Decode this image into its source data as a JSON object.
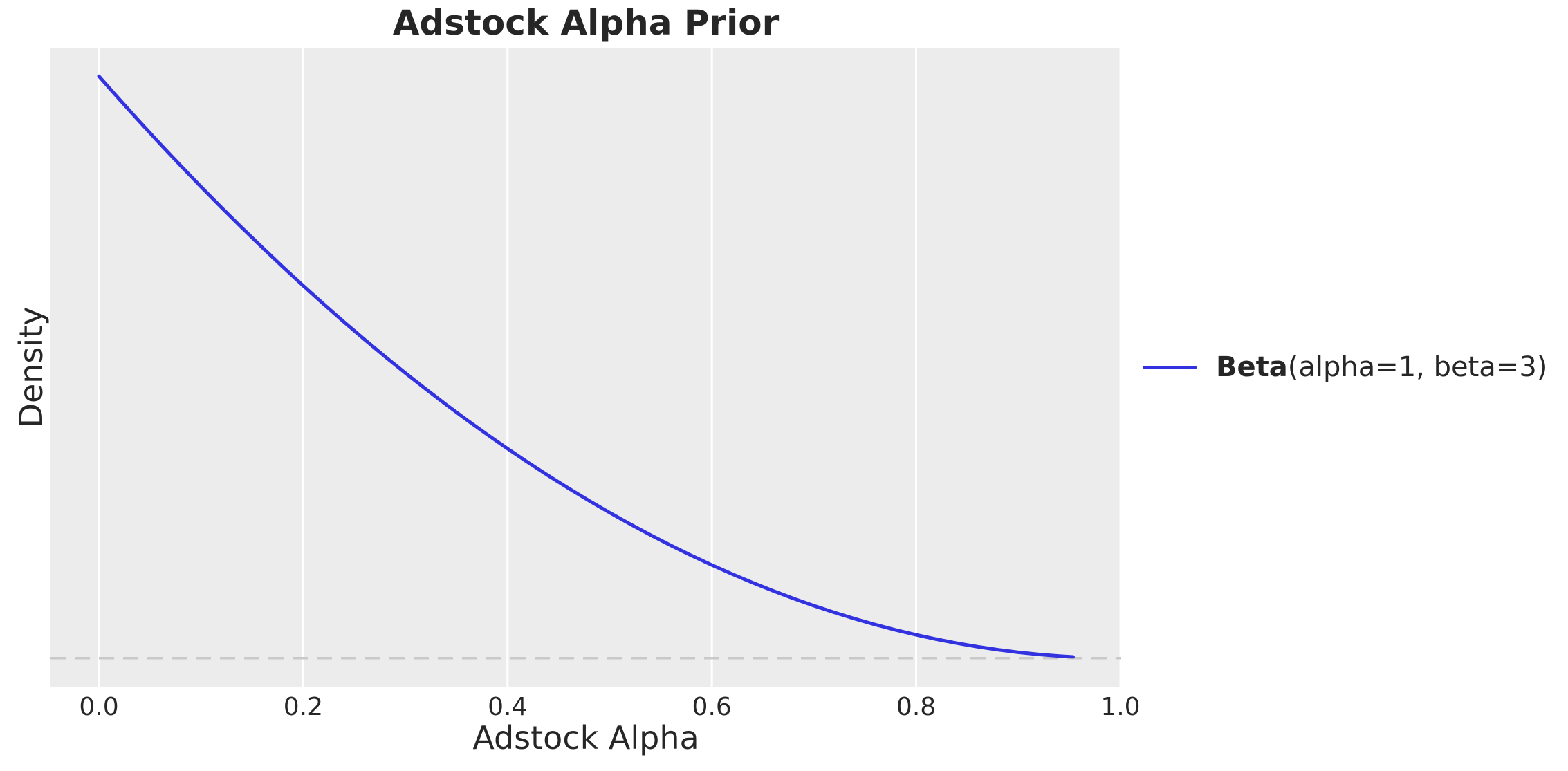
{
  "chart_data": {
    "type": "line",
    "title": "Adstock Alpha Prior",
    "xlabel": "Adstock Alpha",
    "ylabel": "Density",
    "xlim": [
      -0.0474,
      1.0007
    ],
    "ylim": [
      -0.147,
      3.147
    ],
    "xticks": [
      0.0,
      0.2,
      0.4,
      0.6,
      0.8,
      1.0
    ],
    "xtick_labels": [
      "0.0",
      "0.2",
      "0.4",
      "0.6",
      "0.8",
      "1.0"
    ],
    "yticks": [],
    "grid": "vertical-only",
    "legend_position": "center-right-outside",
    "colors": {
      "plot_background": "#ececec",
      "grid_line": "#ffffff",
      "curve": "#3232e1",
      "reference_line": "#c9c9c9",
      "text": "#262626"
    },
    "series": [
      {
        "name": "Beta(alpha=1, beta=3)",
        "label_bold": "Beta",
        "label_rest": "(alpha=1, beta=3)",
        "color": "#3232e1",
        "x": [
          0.0,
          0.02,
          0.04,
          0.06,
          0.08,
          0.1,
          0.12,
          0.14,
          0.16,
          0.18,
          0.2,
          0.22,
          0.24,
          0.26,
          0.28,
          0.3,
          0.32,
          0.34,
          0.36,
          0.38,
          0.4,
          0.42,
          0.44,
          0.46,
          0.48,
          0.5,
          0.52,
          0.54,
          0.56,
          0.58,
          0.6,
          0.62,
          0.64,
          0.66,
          0.68,
          0.7,
          0.72,
          0.74,
          0.76,
          0.78,
          0.8,
          0.82,
          0.84,
          0.86,
          0.88,
          0.9,
          0.92,
          0.94,
          0.9536
        ],
        "y": [
          3.0,
          2.8812,
          2.7648,
          2.6508,
          2.5392,
          2.43,
          2.3232,
          2.2188,
          2.1168,
          2.0172,
          1.92,
          1.8252,
          1.7328,
          1.6428,
          1.5552,
          1.47,
          1.3872,
          1.3068,
          1.2288,
          1.1532,
          1.08,
          1.0092,
          0.9408,
          0.8748,
          0.8112,
          0.75,
          0.6912,
          0.6348,
          0.5808,
          0.5292,
          0.48,
          0.4332,
          0.3888,
          0.3468,
          0.3072,
          0.27,
          0.2352,
          0.2028,
          0.1728,
          0.1452,
          0.12,
          0.0972,
          0.0768,
          0.0588,
          0.0432,
          0.03,
          0.0192,
          0.0108,
          0.0065
        ]
      }
    ],
    "reference_lines": [
      {
        "orientation": "horizontal",
        "y": 0,
        "color": "#c9c9c9",
        "style": "dashed"
      }
    ]
  }
}
